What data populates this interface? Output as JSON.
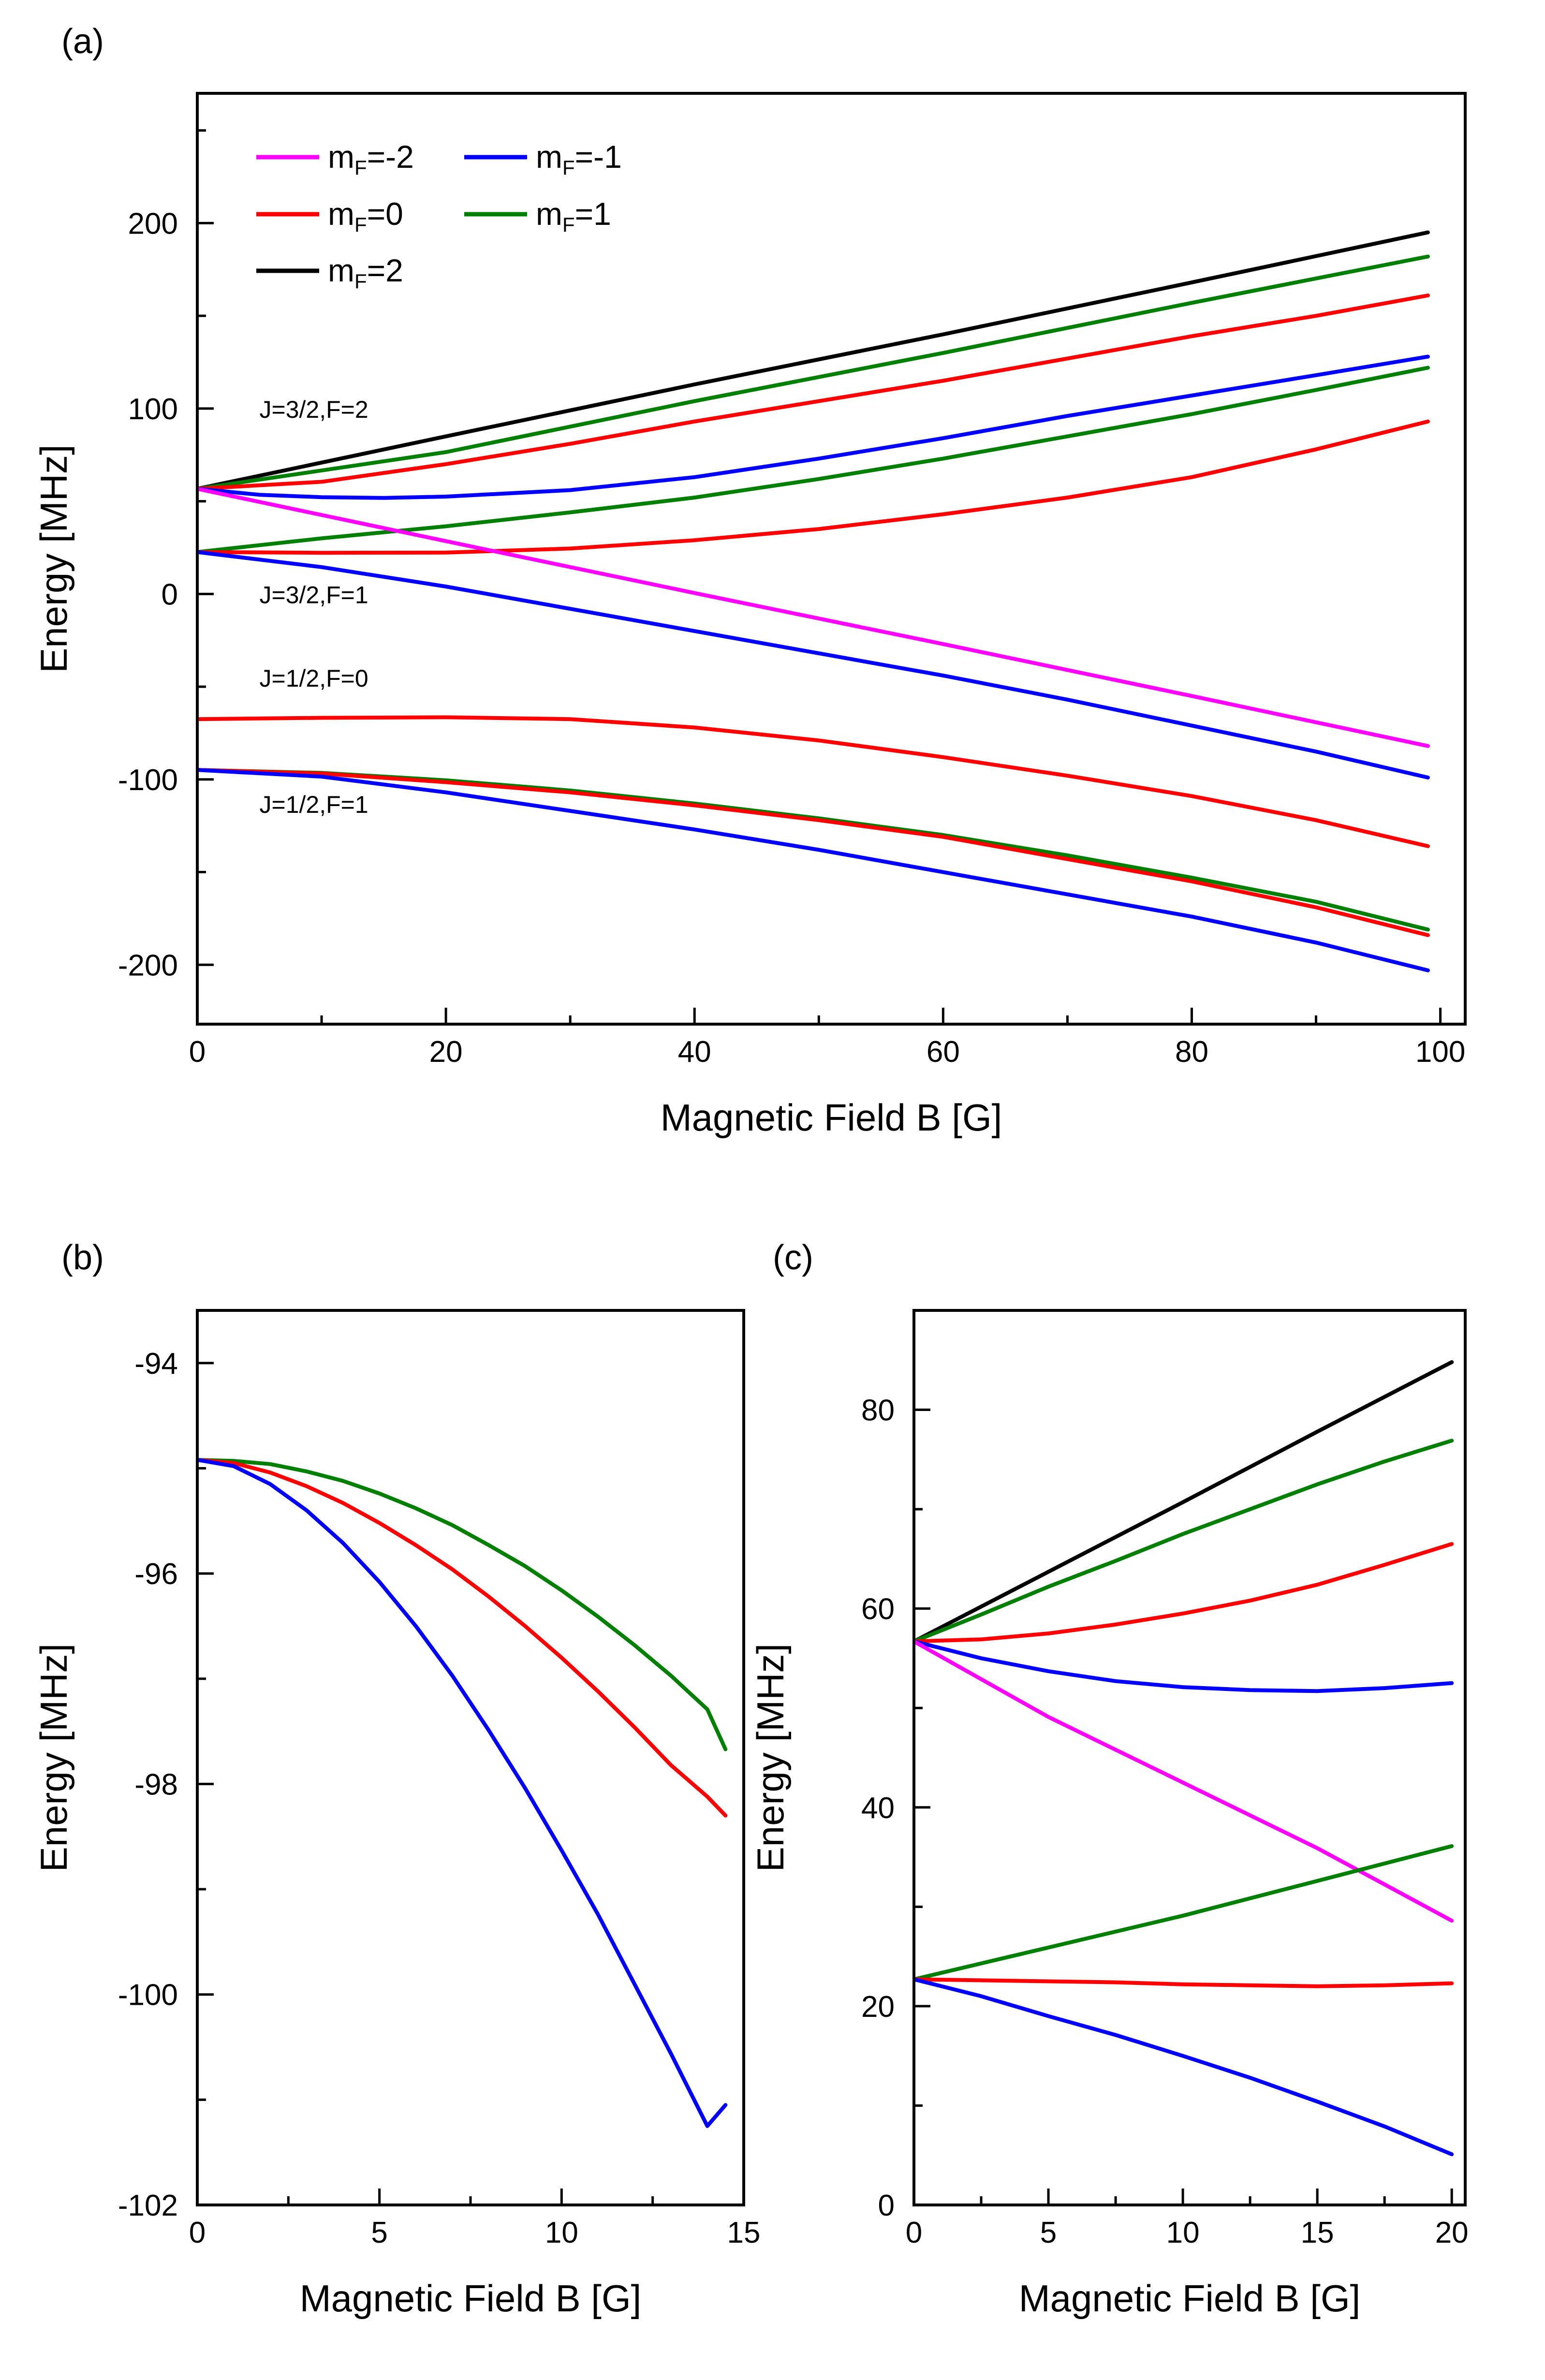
{
  "colors": {
    "m-2": "#ff00ff",
    "m-1": "#0000ff",
    "m0": "#ff0000",
    "m1": "#008000",
    "m2": "#000000"
  },
  "legend": [
    {
      "key": "m-2",
      "base": "m",
      "sub": "F",
      "value": "=-2"
    },
    {
      "key": "m-1",
      "base": "m",
      "sub": "F",
      "value": "=-1"
    },
    {
      "key": "m0",
      "base": "m",
      "sub": "F",
      "value": "=0"
    },
    {
      "key": "m1",
      "base": "m",
      "sub": "F",
      "value": "=1"
    },
    {
      "key": "m2",
      "base": "m",
      "sub": "F",
      "value": "=2"
    }
  ],
  "chart_data": [
    {
      "panel": "(a)",
      "type": "line",
      "xlabel": "Magnetic Field B [G]",
      "ylabel": "Energy [MHz]",
      "xlim": [
        0,
        102
      ],
      "ylim": [
        -232,
        270
      ],
      "xticks": [
        0,
        20,
        40,
        60,
        80,
        100
      ],
      "yticks": [
        -200,
        -100,
        0,
        100,
        200
      ],
      "xminor": 10,
      "yminor": 50,
      "legend_position": "top-left",
      "annotations": [
        {
          "text": "J=3/2,F=2",
          "x": 5,
          "y": 95
        },
        {
          "text": "J=3/2,F=1",
          "x": 5,
          "y": -5
        },
        {
          "text": "J=1/2,F=0",
          "x": 5,
          "y": -50
        },
        {
          "text": "J=1/2,F=1",
          "x": 5,
          "y": -118
        }
      ],
      "series": [
        {
          "key": "m2",
          "x": [
            0,
            20,
            40,
            60,
            80,
            99
          ],
          "y": [
            56.7,
            85,
            113,
            140,
            168,
            195
          ]
        },
        {
          "key": "m1",
          "x": [
            0,
            20,
            40,
            60,
            80,
            99
          ],
          "y": [
            56.7,
            76.5,
            104,
            130,
            157,
            182
          ]
        },
        {
          "key": "m0",
          "x": [
            0,
            10,
            20,
            30,
            40,
            50,
            60,
            70,
            80,
            90,
            99
          ],
          "y": [
            56.7,
            60.5,
            70,
            81,
            93,
            104,
            115,
            127,
            139,
            150,
            161
          ]
        },
        {
          "key": "m-1",
          "x": [
            0,
            5,
            10,
            15,
            20,
            30,
            40,
            50,
            60,
            70,
            80,
            90,
            99
          ],
          "y": [
            56.7,
            53.5,
            52.2,
            51.8,
            52.5,
            56,
            63,
            73,
            84,
            96,
            107,
            118,
            128
          ]
        },
        {
          "key": "m1",
          "x": [
            0,
            10,
            20,
            30,
            40,
            50,
            60,
            70,
            80,
            90,
            99
          ],
          "y": [
            22.6,
            30,
            36.5,
            44,
            52,
            62,
            73,
            85,
            97,
            110,
            122
          ]
        },
        {
          "key": "m0",
          "x": [
            0,
            10,
            20,
            30,
            40,
            50,
            60,
            70,
            80,
            90,
            99
          ],
          "y": [
            22.6,
            22.2,
            22.3,
            24.5,
            29,
            35,
            43,
            52,
            63,
            78,
            93
          ]
        },
        {
          "key": "m-2",
          "x": [
            0,
            20,
            40,
            60,
            80,
            99
          ],
          "y": [
            56.7,
            28.5,
            0.5,
            -27,
            -55,
            -82
          ]
        },
        {
          "key": "m-1",
          "x": [
            0,
            10,
            20,
            30,
            40,
            50,
            60,
            70,
            80,
            90,
            99
          ],
          "y": [
            22.6,
            14.5,
            4,
            -8,
            -20,
            -32,
            -44,
            -57,
            -71,
            -85,
            -99
          ]
        },
        {
          "key": "m0",
          "x": [
            0,
            10,
            20,
            30,
            40,
            50,
            60,
            70,
            80,
            90,
            99
          ],
          "y": [
            -67.5,
            -66.8,
            -66.5,
            -67.5,
            -72,
            -79,
            -88,
            -98,
            -109,
            -122,
            -136
          ]
        },
        {
          "key": "m1",
          "x": [
            0,
            10,
            20,
            30,
            40,
            50,
            60,
            70,
            80,
            90,
            99
          ],
          "y": [
            -94.9,
            -96.5,
            -100.5,
            -106,
            -113,
            -121,
            -130,
            -141,
            -153,
            -166,
            -181
          ]
        },
        {
          "key": "m0",
          "x": [
            0,
            10,
            20,
            30,
            40,
            50,
            60,
            70,
            80,
            90,
            99
          ],
          "y": [
            -94.9,
            -96.8,
            -101.5,
            -107,
            -114,
            -122,
            -131,
            -143,
            -155,
            -169,
            -184
          ]
        },
        {
          "key": "m-1",
          "x": [
            0,
            10,
            20,
            30,
            40,
            50,
            60,
            70,
            80,
            90,
            99
          ],
          "y": [
            -94.9,
            -98.5,
            -107,
            -117,
            -127,
            -138,
            -150,
            -162,
            -174,
            -188,
            -203
          ]
        }
      ]
    },
    {
      "panel": "(b)",
      "type": "line",
      "xlabel": "Magnetic Field B [G]",
      "ylabel": "Energy [MHz]",
      "xlim": [
        0,
        15
      ],
      "ylim": [
        -102,
        -93.5
      ],
      "xticks": [
        0,
        5,
        10,
        15
      ],
      "yticks": [
        -102,
        -100,
        -98,
        -96,
        -94
      ],
      "xminor": 2.5,
      "yminor": 1,
      "series": [
        {
          "key": "m1",
          "x": [
            0,
            1,
            2,
            3,
            4,
            5,
            6,
            7,
            8,
            9,
            10,
            11,
            12,
            13,
            14,
            14.5
          ],
          "y": [
            -94.92,
            -94.93,
            -94.96,
            -95.03,
            -95.12,
            -95.24,
            -95.38,
            -95.54,
            -95.73,
            -95.93,
            -96.16,
            -96.41,
            -96.68,
            -96.97,
            -97.29,
            -97.67
          ]
        },
        {
          "key": "m0",
          "x": [
            0,
            1,
            2,
            3,
            4,
            5,
            6,
            7,
            8,
            9,
            10,
            11,
            12,
            13,
            14,
            14.5
          ],
          "y": [
            -94.92,
            -94.95,
            -95.04,
            -95.17,
            -95.33,
            -95.52,
            -95.73,
            -95.96,
            -96.22,
            -96.5,
            -96.8,
            -97.12,
            -97.46,
            -97.82,
            -98.12,
            -98.3
          ]
        },
        {
          "key": "m-1",
          "x": [
            0,
            1,
            2,
            3,
            4,
            5,
            6,
            7,
            8,
            9,
            10,
            11,
            12,
            13,
            14,
            14.5
          ],
          "y": [
            -94.92,
            -94.98,
            -95.15,
            -95.4,
            -95.71,
            -96.08,
            -96.5,
            -96.97,
            -97.49,
            -98.04,
            -98.63,
            -99.24,
            -99.9,
            -100.56,
            -101.25,
            -101.05
          ]
        }
      ]
    },
    {
      "panel": "(c)",
      "type": "line",
      "xlabel": "Magnetic Field B [G]",
      "ylabel": "Energy [MHz]",
      "xlim": [
        0,
        20.5
      ],
      "ylim": [
        0,
        90
      ],
      "xticks": [
        0,
        5,
        10,
        15,
        20
      ],
      "yticks": [
        0,
        20,
        40,
        60,
        80
      ],
      "xminor": 2.5,
      "yminor": 10,
      "series": [
        {
          "key": "m2",
          "x": [
            0,
            5,
            10,
            15,
            20
          ],
          "y": [
            56.7,
            63.7,
            70.7,
            77.8,
            84.8
          ]
        },
        {
          "key": "m1",
          "x": [
            0,
            2.5,
            5,
            7.5,
            10,
            12.5,
            15,
            17.5,
            20
          ],
          "y": [
            56.7,
            59.4,
            62.2,
            64.8,
            67.5,
            70,
            72.5,
            74.8,
            76.9
          ]
        },
        {
          "key": "m0",
          "x": [
            0,
            2.5,
            5,
            7.5,
            10,
            12.5,
            15,
            17.5,
            20
          ],
          "y": [
            56.7,
            56.9,
            57.5,
            58.4,
            59.5,
            60.8,
            62.4,
            64.4,
            66.5
          ]
        },
        {
          "key": "m-1",
          "x": [
            0,
            2.5,
            5,
            7.5,
            10,
            12.5,
            15,
            17.5,
            20
          ],
          "y": [
            56.7,
            55,
            53.7,
            52.7,
            52.1,
            51.8,
            51.7,
            52,
            52.5
          ]
        },
        {
          "key": "m-2",
          "x": [
            0,
            5,
            10,
            15,
            20
          ],
          "y": [
            56.7,
            49.1,
            42.5,
            35.9,
            28.6
          ]
        },
        {
          "key": "m1",
          "x": [
            0,
            5,
            10,
            15,
            20
          ],
          "y": [
            22.7,
            25.9,
            29.1,
            32.6,
            36.1
          ]
        },
        {
          "key": "m0",
          "x": [
            0,
            2.5,
            5,
            7.5,
            10,
            12.5,
            15,
            17.5,
            20
          ],
          "y": [
            22.7,
            22.6,
            22.5,
            22.4,
            22.2,
            22.1,
            22.0,
            22.1,
            22.3
          ]
        },
        {
          "key": "m-1",
          "x": [
            0,
            2.5,
            5,
            7.5,
            10,
            12.5,
            15,
            17.5,
            20
          ],
          "y": [
            22.7,
            21.0,
            19.0,
            17.1,
            15.0,
            12.8,
            10.4,
            7.9,
            5.1
          ]
        }
      ]
    }
  ]
}
